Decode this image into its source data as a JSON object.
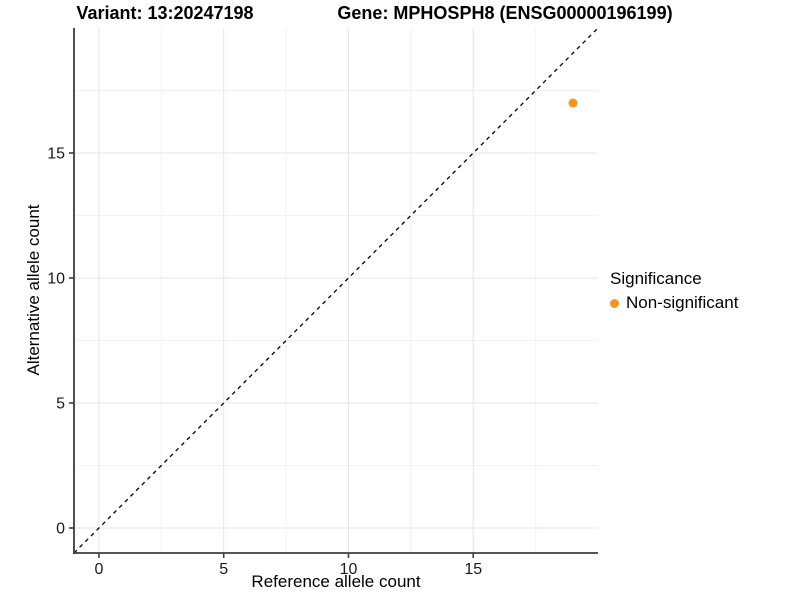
{
  "titles": {
    "variant": "Variant: 13:20247198",
    "gene": "Gene: MPHOSPH8 (ENSG00000196199)"
  },
  "chart_data": {
    "type": "scatter",
    "xlabel": "Reference allele count",
    "ylabel": "Alternative allele count",
    "xlim": [
      -1,
      20
    ],
    "ylim": [
      -1,
      20
    ],
    "x_ticks": [
      0,
      5,
      10,
      15
    ],
    "y_ticks": [
      0,
      5,
      10,
      15
    ],
    "x_minor_ticks": [
      2.5,
      7.5,
      12.5,
      17.5
    ],
    "y_minor_ticks": [
      2.5,
      7.5,
      12.5,
      17.5
    ],
    "grid": true,
    "identity_line": {
      "style": "dashed",
      "from": [
        -1,
        -1
      ],
      "to": [
        20,
        20
      ]
    },
    "points": [
      {
        "x": 19,
        "y": 17,
        "series": "Non-significant"
      }
    ],
    "legend": {
      "title": "Significance",
      "position": "right",
      "entries": [
        {
          "label": "Non-significant",
          "color": "#F79420"
        }
      ]
    },
    "colors": {
      "point": "#F79420",
      "axis_line": "#3C3C3C",
      "grid_major": "#E5E5E5",
      "grid_minor": "#F2F2F2",
      "tick_text": "#1A1A1A",
      "identity_line": "#000000"
    }
  }
}
